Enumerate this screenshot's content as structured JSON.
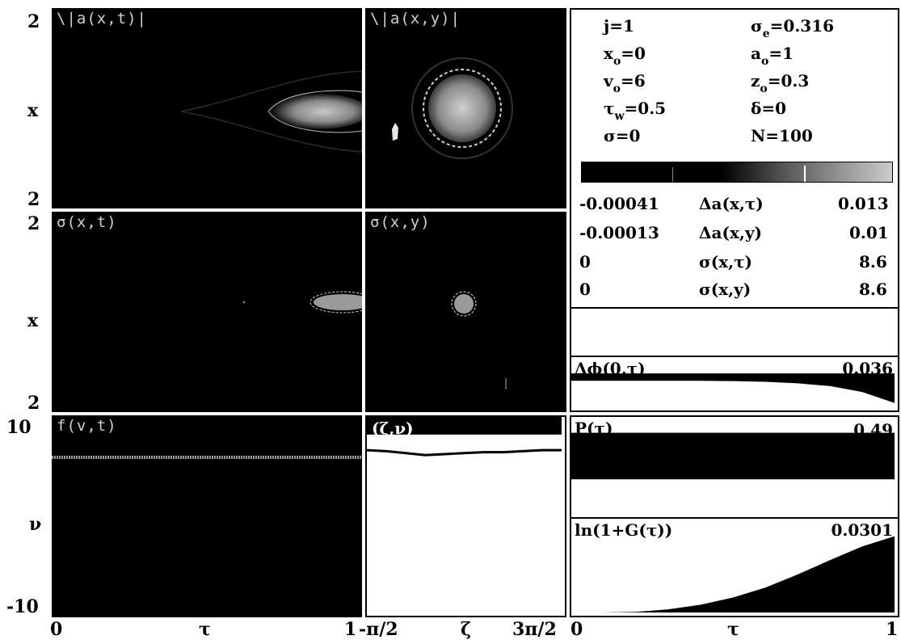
{
  "panels": {
    "a_xt": {
      "title": "\\|a(x,t)|"
    },
    "a_xy": {
      "title": "\\|a(x,y)|"
    },
    "sig_xt": {
      "title": "σ(x,t)"
    },
    "sig_xy": {
      "title": "σ(x,y)"
    },
    "f_vt": {
      "title": "f(v,t)"
    },
    "zeta_v": {
      "title": "(ζ,ν)"
    }
  },
  "left_axis": {
    "row1_top": "2",
    "row1_mid": "x",
    "row1_bot": "2",
    "row2_top": "2",
    "row2_mid": "x",
    "row2_bot": "2",
    "row3_top": "10",
    "row3_mid": "ν",
    "row3_bot": "-10"
  },
  "bottom_axis": {
    "t0": "0",
    "tlab": "τ",
    "t1": "1",
    "z0": "-π/2",
    "zlab": "ζ",
    "z1": "3π/2",
    "r0": "0",
    "rlab": "τ",
    "r1": "1"
  },
  "params": {
    "j": "j=1",
    "sigma_e_sym": "σ",
    "sigma_e_sub": "e",
    "sigma_e_val": "=0.316",
    "x0_sym": "x",
    "x0_sub": "o",
    "x0_val": "=0",
    "a0_sym": "a",
    "a0_sub": "o",
    "a0_val": "=1",
    "v0_sym": "v",
    "v0_sub": "o",
    "v0_val": "=6",
    "z0_sym": "z",
    "z0_sub": "o",
    "z0_val": "=0.3",
    "tw_sym": "τ",
    "tw_sub": "w",
    "tw_val": "=0.5",
    "delta": "δ=0",
    "sigma": "σ=0",
    "N": "N=100"
  },
  "ranges": [
    {
      "min": "-0.00041",
      "label": "Δa(x,τ)",
      "max": "0.013"
    },
    {
      "min": "-0.00013",
      "label": "Δa(x,y)",
      "max": "0.01"
    },
    {
      "min": "0",
      "label": "σ(x,τ)",
      "max": "8.6"
    },
    {
      "min": "0",
      "label": "σ(x,y)",
      "max": "8.6"
    }
  ],
  "plots": {
    "dphi": {
      "label": "Δϕ(0,τ)",
      "max": "0.036"
    },
    "P": {
      "label": "P(τ)",
      "max": "0.49"
    },
    "G": {
      "label": "ln(1+G(τ))",
      "max": "0.0301"
    }
  },
  "chart_data": [
    {
      "type": "line",
      "title": "Δϕ(0,τ)",
      "xlabel": "τ",
      "xlim": [
        0,
        1
      ],
      "ylim": [
        0,
        0.036
      ],
      "x": [
        0,
        0.1,
        0.2,
        0.3,
        0.4,
        0.5,
        0.6,
        0.7,
        0.8,
        0.9,
        1.0
      ],
      "y": [
        0.019,
        0.019,
        0.019,
        0.019,
        0.019,
        0.0188,
        0.0183,
        0.0172,
        0.0152,
        0.011,
        0.003
      ]
    },
    {
      "type": "line",
      "title": "P(τ)",
      "xlabel": "τ",
      "xlim": [
        0,
        1
      ],
      "ylim": [
        0,
        0.49
      ],
      "x": [
        0,
        0.25,
        0.5,
        0.75,
        1.0
      ],
      "y": [
        0.41,
        0.41,
        0.41,
        0.41,
        0.41
      ]
    },
    {
      "type": "line",
      "title": "ln(1+G(τ))",
      "xlabel": "τ",
      "xlim": [
        0,
        1
      ],
      "ylim": [
        0,
        0.0301
      ],
      "x": [
        0,
        0.1,
        0.2,
        0.3,
        0.4,
        0.5,
        0.6,
        0.7,
        0.8,
        0.9,
        1.0
      ],
      "y": [
        0,
        0,
        0.0002,
        0.001,
        0.0025,
        0.0048,
        0.008,
        0.0122,
        0.0168,
        0.0212,
        0.0245
      ]
    },
    {
      "type": "line",
      "title": "(ζ,ν)",
      "xlabel": "ζ",
      "ylabel": "ν",
      "xlim": [
        "-π/2",
        "3π/2"
      ],
      "ylim": [
        -10,
        10
      ],
      "x": [
        0,
        0.1,
        0.2,
        0.3,
        0.4,
        0.5,
        0.6,
        0.7,
        0.8,
        0.9,
        1.0
      ],
      "y": [
        6.6,
        6.5,
        6.3,
        6.1,
        6.2,
        6.3,
        6.4,
        6.4,
        6.5,
        6.6,
        6.6
      ]
    }
  ]
}
